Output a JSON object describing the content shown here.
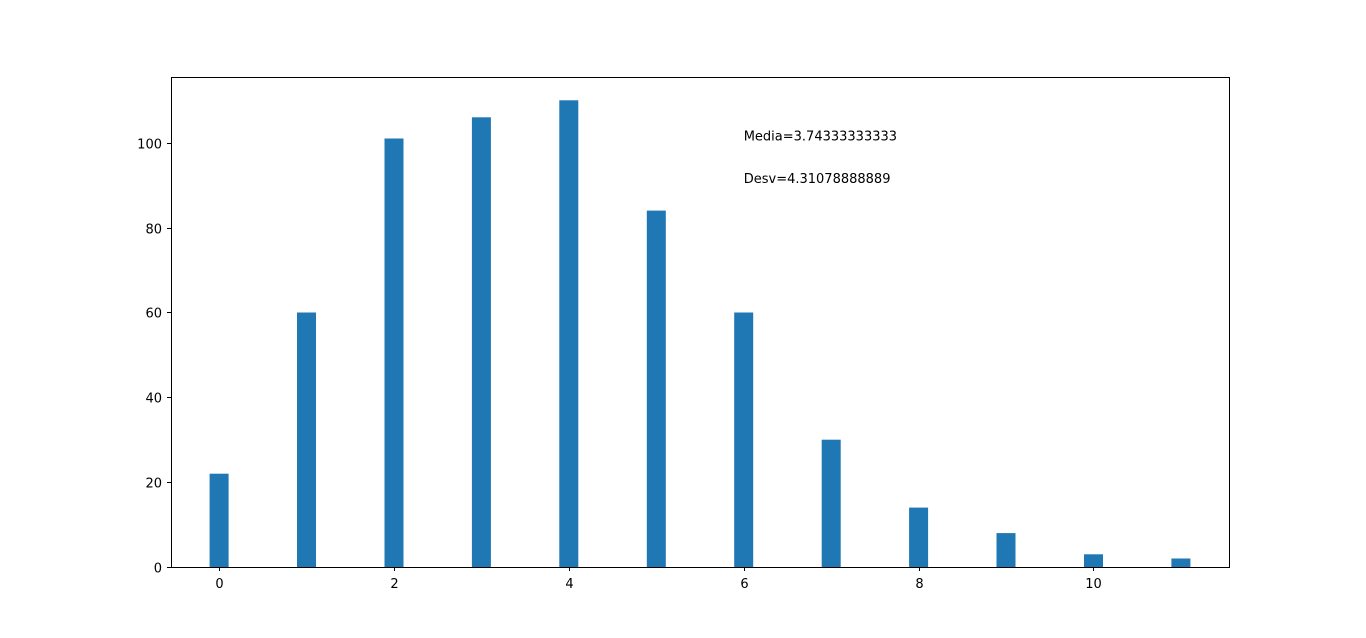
{
  "chart_data": {
    "type": "bar",
    "title": "",
    "xlabel": "",
    "ylabel": "",
    "x": [
      0,
      1,
      2,
      3,
      4,
      5,
      6,
      7,
      8,
      9,
      10,
      11
    ],
    "values": [
      22,
      60,
      101,
      106,
      110,
      84,
      60,
      30,
      14,
      8,
      3,
      2
    ],
    "xlim": [
      -0.55,
      11.55
    ],
    "ylim": [
      0,
      115.5
    ],
    "x_ticks": [
      0,
      2,
      4,
      6,
      8,
      10
    ],
    "x_tick_labels": [
      "0",
      "2",
      "4",
      "6",
      "8",
      "10"
    ],
    "y_ticks": [
      0,
      20,
      40,
      60,
      80,
      100
    ],
    "y_tick_labels": [
      "0",
      "20",
      "40",
      "60",
      "80",
      "100"
    ],
    "bar_color": "#1f77b4",
    "grid": false,
    "annotations": [
      {
        "text": "Media=3.74333333333",
        "x": 6.0,
        "y": 100.5
      },
      {
        "text": "Desv=4.31078888889",
        "x": 6.0,
        "y": 90.5
      }
    ]
  }
}
